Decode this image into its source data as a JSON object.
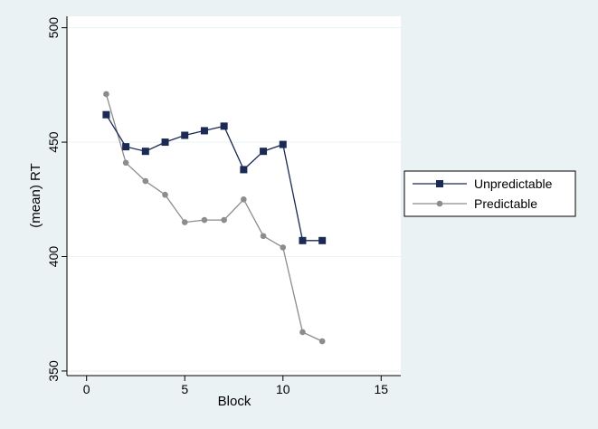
{
  "chart_data": {
    "type": "line",
    "xlabel": "Block",
    "ylabel": "(mean) RT",
    "xlim": [
      -1,
      16
    ],
    "ylim": [
      348,
      505
    ],
    "xticks": [
      0,
      5,
      10,
      15
    ],
    "yticks": [
      350,
      400,
      450,
      500
    ],
    "grid": "horizontal",
    "legend_position": "right",
    "series": [
      {
        "name": "Unpredictable",
        "color": "#1a2a55",
        "marker": "square",
        "x": [
          1,
          2,
          3,
          4,
          5,
          6,
          7,
          8,
          9,
          10,
          11,
          12
        ],
        "values": [
          462,
          448,
          446,
          450,
          453,
          455,
          457,
          438,
          446,
          449,
          407,
          407
        ]
      },
      {
        "name": "Predictable",
        "color": "#8c8c8c",
        "marker": "circle",
        "x": [
          1,
          2,
          3,
          4,
          5,
          6,
          7,
          8,
          9,
          10,
          11,
          12
        ],
        "values": [
          471,
          441,
          433,
          427,
          415,
          416,
          416,
          425,
          409,
          404,
          367,
          363
        ]
      }
    ]
  }
}
